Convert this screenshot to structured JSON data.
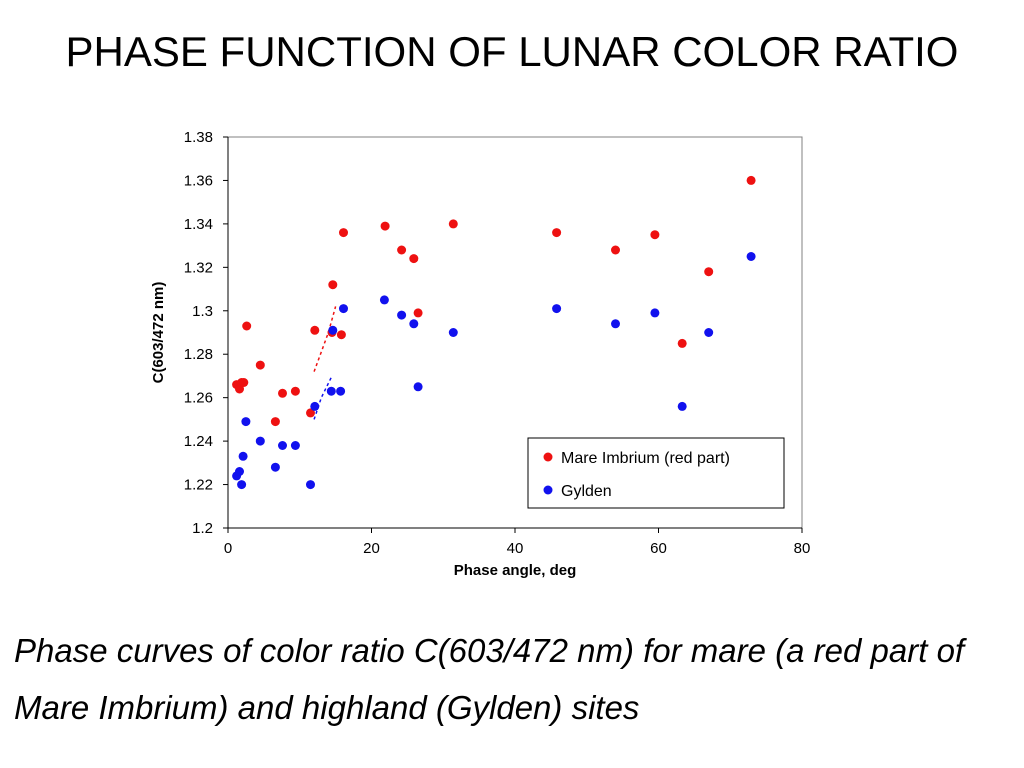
{
  "slide": {
    "title": "PHASE FUNCTION OF LUNAR COLOR RATIO",
    "caption": "Phase curves of color ratio C(603/472 nm) for mare (a red part of Mare Imbrium) and highland (Gylden) sites"
  },
  "chart_data": {
    "type": "scatter",
    "title": "",
    "xlabel": "Phase angle, deg",
    "ylabel": "C(603/472 nm)",
    "xlim": [
      0,
      80
    ],
    "ylim": [
      1.2,
      1.38
    ],
    "xticks": [
      "0",
      "20",
      "40",
      "60",
      "80"
    ],
    "yticks": [
      "1.2",
      "1.22",
      "1.24",
      "1.26",
      "1.28",
      "1.3",
      "1.32",
      "1.34",
      "1.36",
      "1.38"
    ],
    "grid": false,
    "legend_position": "bottom-right",
    "series": [
      {
        "name": "Mare Imbrium (red part)",
        "color": "#ee1111",
        "points": [
          [
            1.2,
            1.266
          ],
          [
            1.6,
            1.264
          ],
          [
            1.9,
            1.267
          ],
          [
            2.2,
            1.267
          ],
          [
            2.6,
            1.293
          ],
          [
            4.5,
            1.275
          ],
          [
            6.6,
            1.249
          ],
          [
            7.6,
            1.262
          ],
          [
            9.4,
            1.263
          ],
          [
            11.5,
            1.253
          ],
          [
            12.1,
            1.291
          ],
          [
            14.5,
            1.29
          ],
          [
            14.6,
            1.312
          ],
          [
            15.8,
            1.289
          ],
          [
            16.1,
            1.336
          ],
          [
            21.9,
            1.339
          ],
          [
            24.2,
            1.328
          ],
          [
            25.9,
            1.324
          ],
          [
            26.5,
            1.299
          ],
          [
            31.4,
            1.34
          ],
          [
            45.8,
            1.336
          ],
          [
            54.0,
            1.328
          ],
          [
            59.5,
            1.335
          ],
          [
            63.3,
            1.285
          ],
          [
            67.0,
            1.318
          ],
          [
            72.9,
            1.36
          ]
        ]
      },
      {
        "name": "Gylden",
        "color": "#1111ee",
        "points": [
          [
            1.2,
            1.224
          ],
          [
            1.6,
            1.226
          ],
          [
            1.9,
            1.22
          ],
          [
            2.1,
            1.233
          ],
          [
            2.5,
            1.249
          ],
          [
            4.5,
            1.24
          ],
          [
            6.6,
            1.228
          ],
          [
            7.6,
            1.238
          ],
          [
            9.4,
            1.238
          ],
          [
            11.5,
            1.22
          ],
          [
            12.1,
            1.256
          ],
          [
            14.4,
            1.263
          ],
          [
            14.6,
            1.291
          ],
          [
            15.7,
            1.263
          ],
          [
            16.1,
            1.301
          ],
          [
            21.8,
            1.305
          ],
          [
            24.2,
            1.298
          ],
          [
            25.9,
            1.294
          ],
          [
            26.5,
            1.265
          ],
          [
            31.4,
            1.29
          ],
          [
            45.8,
            1.301
          ],
          [
            54.0,
            1.294
          ],
          [
            59.5,
            1.299
          ],
          [
            63.3,
            1.256
          ],
          [
            67.0,
            1.29
          ],
          [
            72.9,
            1.325
          ]
        ]
      }
    ],
    "trend_lines": [
      {
        "color": "#ee1111",
        "points": [
          [
            12.0,
            1.272
          ],
          [
            14.0,
            1.29
          ],
          [
            15.0,
            1.302
          ]
        ]
      },
      {
        "color": "#1111ee",
        "points": [
          [
            12.0,
            1.25
          ],
          [
            13.0,
            1.26
          ],
          [
            14.5,
            1.27
          ]
        ]
      }
    ]
  }
}
